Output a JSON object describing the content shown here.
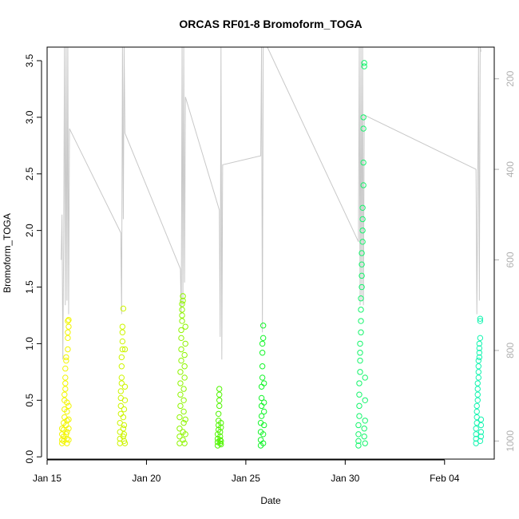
{
  "chart_data": {
    "type": "scatter",
    "title": "ORCAS RF01-8 Bromoform_TOGA",
    "xlabel": "Date",
    "ylabel": "Bromoform_TOGA",
    "x_tick_labels": [
      "Jan 15",
      "Jan 20",
      "Jan 25",
      "Jan 30",
      "Feb 04"
    ],
    "x_tick_dates": [
      "2016-01-15",
      "2016-01-20",
      "2016-01-25",
      "2016-01-30",
      "2016-02-04"
    ],
    "xlim": [
      "2016-01-15T00:00",
      "2016-02-06T12:00"
    ],
    "y_ticks": [
      0.0,
      0.5,
      1.0,
      1.5,
      2.0,
      2.5,
      3.0,
      3.5
    ],
    "y_tick_labels": [
      "0.0",
      "0.5",
      "1.0",
      "1.5",
      "2.0",
      "2.5",
      "3.0",
      "3.5"
    ],
    "ylim": [
      -0.02,
      3.62
    ],
    "right_axis": {
      "ticks": [
        200,
        400,
        600,
        800,
        1000
      ],
      "tick_labels": [
        "200",
        "400",
        "600",
        "800",
        "1000"
      ],
      "lim_top": 130,
      "lim_bottom": 1040,
      "reversed": true,
      "color": "#b0b0b0"
    },
    "grid": false,
    "legend": "none",
    "series": [
      {
        "color": "#f2f500",
        "points": [
          [
            "2016-01-15T18:00",
            0.12
          ],
          [
            "2016-01-15T18:00",
            0.15
          ],
          [
            "2016-01-15T18:00",
            0.2
          ],
          [
            "2016-01-15T18:00",
            0.25
          ],
          [
            "2016-01-15T20:00",
            0.14
          ],
          [
            "2016-01-15T20:00",
            0.18
          ],
          [
            "2016-01-15T20:00",
            0.24
          ],
          [
            "2016-01-15T20:00",
            0.3
          ],
          [
            "2016-01-15T21:00",
            0.35
          ],
          [
            "2016-01-15T21:00",
            0.42
          ],
          [
            "2016-01-15T21:00",
            0.5
          ],
          [
            "2016-01-15T21:00",
            0.55
          ],
          [
            "2016-01-15T22:00",
            0.6
          ],
          [
            "2016-01-15T22:00",
            0.65
          ],
          [
            "2016-01-15T22:00",
            0.7
          ],
          [
            "2016-01-15T22:00",
            0.78
          ],
          [
            "2016-01-15T23:00",
            0.85
          ],
          [
            "2016-01-15T23:00",
            0.88
          ],
          [
            "2016-01-15T23:00",
            0.2
          ],
          [
            "2016-01-15T23:00",
            0.28
          ],
          [
            "2016-01-16T00:00",
            0.12
          ],
          [
            "2016-01-16T00:00",
            0.16
          ],
          [
            "2016-01-16T00:00",
            0.22
          ],
          [
            "2016-01-16T00:00",
            0.32
          ],
          [
            "2016-01-16T00:00",
            0.4
          ],
          [
            "2016-01-16T00:00",
            0.48
          ],
          [
            "2016-01-16T01:00",
            0.95
          ],
          [
            "2016-01-16T01:00",
            1.05
          ],
          [
            "2016-01-16T01:00",
            1.1
          ],
          [
            "2016-01-16T01:00",
            1.2
          ],
          [
            "2016-01-16T02:00",
            0.15
          ],
          [
            "2016-01-16T02:00",
            0.25
          ],
          [
            "2016-01-16T02:00",
            0.33
          ],
          [
            "2016-01-16T02:00",
            0.45
          ],
          [
            "2016-01-16T02:00",
            1.15
          ],
          [
            "2016-01-16T02:00",
            1.21
          ]
        ]
      },
      {
        "color": "#cdf500",
        "points": [
          [
            "2016-01-18T16:00",
            0.12
          ],
          [
            "2016-01-18T16:00",
            0.16
          ],
          [
            "2016-01-18T16:00",
            0.22
          ],
          [
            "2016-01-18T16:00",
            0.3
          ],
          [
            "2016-01-18T17:00",
            0.38
          ],
          [
            "2016-01-18T17:00",
            0.45
          ],
          [
            "2016-01-18T17:00",
            0.52
          ],
          [
            "2016-01-18T17:00",
            0.58
          ],
          [
            "2016-01-18T18:00",
            0.65
          ],
          [
            "2016-01-18T18:00",
            0.7
          ],
          [
            "2016-01-18T18:00",
            0.8
          ],
          [
            "2016-01-18T18:00",
            0.88
          ],
          [
            "2016-01-18T19:00",
            0.95
          ],
          [
            "2016-01-18T19:00",
            1.02
          ],
          [
            "2016-01-18T19:00",
            1.1
          ],
          [
            "2016-01-18T19:00",
            1.15
          ],
          [
            "2016-01-18T20:00",
            1.31
          ],
          [
            "2016-01-18T20:00",
            0.18
          ],
          [
            "2016-01-18T20:00",
            0.25
          ],
          [
            "2016-01-18T20:00",
            0.35
          ],
          [
            "2016-01-18T21:00",
            0.14
          ],
          [
            "2016-01-18T21:00",
            0.2
          ],
          [
            "2016-01-18T21:00",
            0.28
          ],
          [
            "2016-01-18T21:00",
            0.42
          ],
          [
            "2016-01-18T22:00",
            0.5
          ],
          [
            "2016-01-18T22:00",
            0.12
          ],
          [
            "2016-01-18T22:00",
            0.62
          ],
          [
            "2016-01-18T22:00",
            0.95
          ]
        ]
      },
      {
        "color": "#8ff500",
        "points": [
          [
            "2016-01-21T16:00",
            0.12
          ],
          [
            "2016-01-21T16:00",
            0.18
          ],
          [
            "2016-01-21T16:00",
            0.25
          ],
          [
            "2016-01-21T16:00",
            0.35
          ],
          [
            "2016-01-21T17:00",
            0.45
          ],
          [
            "2016-01-21T17:00",
            0.55
          ],
          [
            "2016-01-21T17:00",
            0.65
          ],
          [
            "2016-01-21T17:00",
            0.75
          ],
          [
            "2016-01-21T18:00",
            0.85
          ],
          [
            "2016-01-21T18:00",
            0.95
          ],
          [
            "2016-01-21T18:00",
            1.05
          ],
          [
            "2016-01-21T18:00",
            1.12
          ],
          [
            "2016-01-21T19:00",
            1.2
          ],
          [
            "2016-01-21T19:00",
            1.25
          ],
          [
            "2016-01-21T19:00",
            1.3
          ],
          [
            "2016-01-21T19:00",
            1.35
          ],
          [
            "2016-01-21T20:00",
            1.38
          ],
          [
            "2016-01-21T20:00",
            1.42
          ],
          [
            "2016-01-21T20:00",
            0.15
          ],
          [
            "2016-01-21T20:00",
            0.22
          ],
          [
            "2016-01-21T21:00",
            0.3
          ],
          [
            "2016-01-21T21:00",
            0.4
          ],
          [
            "2016-01-21T21:00",
            0.5
          ],
          [
            "2016-01-21T21:00",
            0.6
          ],
          [
            "2016-01-21T22:00",
            0.7
          ],
          [
            "2016-01-21T22:00",
            0.8
          ],
          [
            "2016-01-21T22:00",
            0.9
          ],
          [
            "2016-01-21T22:00",
            0.12
          ],
          [
            "2016-01-21T23:00",
            0.2
          ],
          [
            "2016-01-21T23:00",
            0.33
          ],
          [
            "2016-01-21T23:00",
            1.0
          ],
          [
            "2016-01-21T23:00",
            1.15
          ]
        ]
      },
      {
        "color": "#50f500",
        "points": [
          [
            "2016-01-23T14:00",
            0.1
          ],
          [
            "2016-01-23T14:00",
            0.13
          ],
          [
            "2016-01-23T14:00",
            0.16
          ],
          [
            "2016-01-23T14:00",
            0.2
          ],
          [
            "2016-01-23T15:00",
            0.24
          ],
          [
            "2016-01-23T15:00",
            0.28
          ],
          [
            "2016-01-23T15:00",
            0.32
          ],
          [
            "2016-01-23T15:00",
            0.38
          ],
          [
            "2016-01-23T16:00",
            0.45
          ],
          [
            "2016-01-23T16:00",
            0.5
          ],
          [
            "2016-01-23T16:00",
            0.55
          ],
          [
            "2016-01-23T16:00",
            0.6
          ],
          [
            "2016-01-23T17:00",
            0.12
          ],
          [
            "2016-01-23T17:00",
            0.15
          ],
          [
            "2016-01-23T17:00",
            0.18
          ],
          [
            "2016-01-23T17:00",
            0.22
          ],
          [
            "2016-01-23T18:00",
            0.26
          ],
          [
            "2016-01-23T18:00",
            0.3
          ],
          [
            "2016-01-23T18:00",
            0.11
          ],
          [
            "2016-01-23T18:00",
            0.14
          ]
        ]
      },
      {
        "color": "#13f52a",
        "points": [
          [
            "2016-01-25T18:00",
            0.1
          ],
          [
            "2016-01-25T18:00",
            0.15
          ],
          [
            "2016-01-25T18:00",
            0.22
          ],
          [
            "2016-01-25T18:00",
            0.3
          ],
          [
            "2016-01-25T19:00",
            0.36
          ],
          [
            "2016-01-25T19:00",
            0.45
          ],
          [
            "2016-01-25T19:00",
            0.52
          ],
          [
            "2016-01-25T19:00",
            0.62
          ],
          [
            "2016-01-25T20:00",
            0.7
          ],
          [
            "2016-01-25T20:00",
            0.8
          ],
          [
            "2016-01-25T20:00",
            0.92
          ],
          [
            "2016-01-25T20:00",
            1.0
          ],
          [
            "2016-01-25T21:00",
            1.05
          ],
          [
            "2016-01-25T21:00",
            1.16
          ],
          [
            "2016-01-25T21:00",
            0.12
          ],
          [
            "2016-01-25T21:00",
            0.2
          ],
          [
            "2016-01-25T22:00",
            0.28
          ],
          [
            "2016-01-25T22:00",
            0.4
          ],
          [
            "2016-01-25T22:00",
            0.48
          ],
          [
            "2016-01-25T22:00",
            0.65
          ]
        ]
      },
      {
        "color": "#13f56b",
        "points": [
          [
            "2016-01-30T16:00",
            0.1
          ],
          [
            "2016-01-30T16:00",
            0.14
          ],
          [
            "2016-01-30T16:00",
            0.2
          ],
          [
            "2016-01-30T16:00",
            0.28
          ],
          [
            "2016-01-30T17:00",
            0.36
          ],
          [
            "2016-01-30T17:00",
            0.45
          ],
          [
            "2016-01-30T17:00",
            0.55
          ],
          [
            "2016-01-30T17:00",
            0.65
          ],
          [
            "2016-01-30T18:00",
            0.75
          ],
          [
            "2016-01-30T18:00",
            0.85
          ],
          [
            "2016-01-30T18:00",
            0.92
          ],
          [
            "2016-01-30T18:00",
            1.0
          ],
          [
            "2016-01-30T19:00",
            1.1
          ],
          [
            "2016-01-30T19:00",
            1.2
          ],
          [
            "2016-01-30T19:00",
            1.3
          ],
          [
            "2016-01-30T19:00",
            1.4
          ],
          [
            "2016-01-30T20:00",
            1.5
          ],
          [
            "2016-01-30T20:00",
            1.6
          ],
          [
            "2016-01-30T20:00",
            1.7
          ],
          [
            "2016-01-30T20:00",
            1.8
          ],
          [
            "2016-01-30T21:00",
            1.9
          ],
          [
            "2016-01-30T21:00",
            2.0
          ],
          [
            "2016-01-30T21:00",
            2.1
          ],
          [
            "2016-01-30T21:00",
            2.2
          ],
          [
            "2016-01-30T22:00",
            2.4
          ],
          [
            "2016-01-30T22:00",
            2.6
          ],
          [
            "2016-01-30T22:00",
            2.9
          ],
          [
            "2016-01-30T22:00",
            3.0
          ],
          [
            "2016-01-30T23:00",
            3.45
          ],
          [
            "2016-01-30T23:00",
            3.48
          ],
          [
            "2016-01-30T23:00",
            0.18
          ],
          [
            "2016-01-30T23:00",
            0.25
          ],
          [
            "2016-01-31T00:00",
            0.32
          ],
          [
            "2016-01-31T00:00",
            0.5
          ],
          [
            "2016-01-31T00:00",
            0.12
          ],
          [
            "2016-01-31T00:00",
            0.7
          ]
        ]
      },
      {
        "color": "#13f5b0",
        "points": [
          [
            "2016-02-05T14:00",
            0.12
          ],
          [
            "2016-02-05T14:00",
            0.16
          ],
          [
            "2016-02-05T14:00",
            0.2
          ],
          [
            "2016-02-05T14:00",
            0.25
          ],
          [
            "2016-02-05T15:00",
            0.3
          ],
          [
            "2016-02-05T15:00",
            0.35
          ],
          [
            "2016-02-05T15:00",
            0.4
          ],
          [
            "2016-02-05T15:00",
            0.45
          ],
          [
            "2016-02-05T16:00",
            0.5
          ],
          [
            "2016-02-05T16:00",
            0.55
          ],
          [
            "2016-02-05T16:00",
            0.6
          ],
          [
            "2016-02-05T16:00",
            0.65
          ],
          [
            "2016-02-05T17:00",
            0.7
          ],
          [
            "2016-02-05T17:00",
            0.75
          ],
          [
            "2016-02-05T17:00",
            0.8
          ],
          [
            "2016-02-05T17:00",
            0.85
          ],
          [
            "2016-02-05T18:00",
            0.88
          ],
          [
            "2016-02-05T18:00",
            0.92
          ],
          [
            "2016-02-05T18:00",
            0.96
          ],
          [
            "2016-02-05T18:00",
            1.0
          ],
          [
            "2016-02-05T19:00",
            1.05
          ],
          [
            "2016-02-05T19:00",
            1.2
          ],
          [
            "2016-02-05T19:00",
            1.22
          ],
          [
            "2016-02-05T19:00",
            0.14
          ],
          [
            "2016-02-05T20:00",
            0.18
          ],
          [
            "2016-02-05T20:00",
            0.22
          ],
          [
            "2016-02-05T20:00",
            0.28
          ],
          [
            "2016-02-05T20:00",
            0.33
          ]
        ]
      }
    ],
    "overlay_line": {
      "color": "#c8c8c8",
      "axis": "right",
      "points": [
        [
          "2016-01-15T17:00",
          600
        ],
        [
          "2016-01-15T18:00",
          500
        ],
        [
          "2016-01-15T19:00",
          820
        ],
        [
          "2016-01-15T20:00",
          560
        ],
        [
          "2016-01-15T21:00",
          130
        ],
        [
          "2016-01-15T22:00",
          700
        ],
        [
          "2016-01-15T23:00",
          130
        ],
        [
          "2016-01-16T00:00",
          690
        ],
        [
          "2016-01-16T01:00",
          130
        ],
        [
          "2016-01-16T02:00",
          720
        ],
        [
          "2016-01-16T03:00",
          310
        ],
        [
          "2016-01-18T17:00",
          540
        ],
        [
          "2016-01-18T18:00",
          720
        ],
        [
          "2016-01-18T19:00",
          130
        ],
        [
          "2016-01-18T20:00",
          510
        ],
        [
          "2016-01-18T21:00",
          130
        ],
        [
          "2016-01-18T22:00",
          320
        ],
        [
          "2016-01-21T17:00",
          620
        ],
        [
          "2016-01-21T18:00",
          720
        ],
        [
          "2016-01-21T19:00",
          130
        ],
        [
          "2016-01-21T20:00",
          700
        ],
        [
          "2016-01-21T21:00",
          130
        ],
        [
          "2016-01-21T22:00",
          650
        ],
        [
          "2016-01-21T23:00",
          240
        ],
        [
          "2016-01-23T16:00",
          490
        ],
        [
          "2016-01-23T17:00",
          770
        ],
        [
          "2016-01-23T18:00",
          130
        ],
        [
          "2016-01-23T19:00",
          820
        ],
        [
          "2016-01-23T20:00",
          390
        ],
        [
          "2016-01-25T18:00",
          370
        ],
        [
          "2016-01-25T19:00",
          130
        ],
        [
          "2016-01-25T20:00",
          760
        ],
        [
          "2016-01-25T21:00",
          130
        ],
        [
          "2016-01-26T02:00",
          130
        ],
        [
          "2016-01-30T16:00",
          560
        ],
        [
          "2016-01-30T17:00",
          130
        ],
        [
          "2016-01-30T18:00",
          700
        ],
        [
          "2016-01-30T19:00",
          130
        ],
        [
          "2016-01-30T20:00",
          690
        ],
        [
          "2016-01-30T21:00",
          130
        ],
        [
          "2016-01-30T22:00",
          700
        ],
        [
          "2016-01-30T23:00",
          280
        ],
        [
          "2016-02-05T14:00",
          400
        ],
        [
          "2016-02-05T15:00",
          720
        ],
        [
          "2016-02-05T16:00",
          470
        ],
        [
          "2016-02-05T17:00",
          130
        ],
        [
          "2016-02-05T18:00",
          690
        ],
        [
          "2016-02-05T19:00",
          130
        ],
        [
          "2016-02-05T20:00",
          140
        ]
      ]
    }
  }
}
